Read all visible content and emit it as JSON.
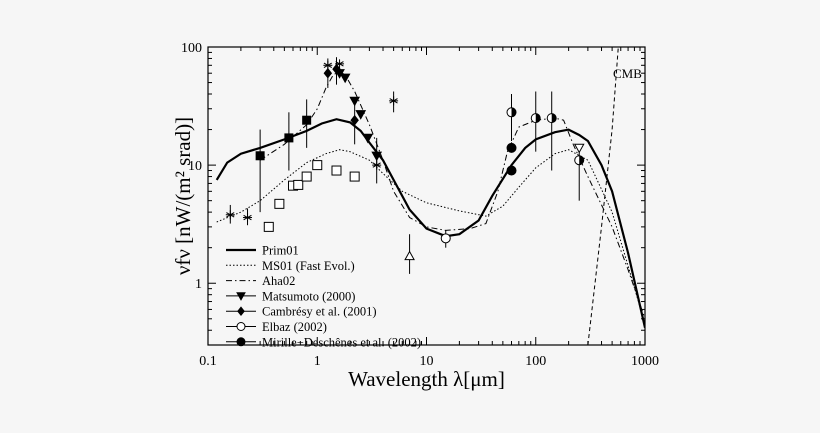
{
  "chart_data": {
    "type": "line",
    "xlabel": "Wavelength λ[μm]",
    "ylabel": "νfν [nW/(m² srad)]",
    "x_scale": "log",
    "y_scale": "log",
    "xlim": [
      0.1,
      1000
    ],
    "ylim": [
      0.3,
      100
    ],
    "x_ticks": [
      "0.1",
      "1",
      "10",
      "100",
      "1000"
    ],
    "y_ticks": [
      "1",
      "10",
      "100"
    ],
    "legend_position": "bottom-left",
    "annotations": [
      {
        "text": "CMB",
        "x": 780,
        "y": 60
      }
    ],
    "series": [
      {
        "name": "Prim01",
        "style": "solid-thick",
        "points": [
          [
            0.12,
            7.5
          ],
          [
            0.15,
            10.5
          ],
          [
            0.2,
            12.5
          ],
          [
            0.3,
            14
          ],
          [
            0.5,
            16.5
          ],
          [
            0.8,
            19.5
          ],
          [
            1.1,
            22.5
          ],
          [
            1.5,
            24.5
          ],
          [
            2,
            23
          ],
          [
            2.5,
            19.5
          ],
          [
            3,
            15.5
          ],
          [
            4,
            11
          ],
          [
            5,
            7.5
          ],
          [
            7,
            4.2
          ],
          [
            10,
            2.9
          ],
          [
            15,
            2.5
          ],
          [
            20,
            2.6
          ],
          [
            30,
            3.4
          ],
          [
            40,
            5.5
          ],
          [
            60,
            10
          ],
          [
            80,
            14
          ],
          [
            100,
            16.5
          ],
          [
            150,
            19
          ],
          [
            200,
            20
          ],
          [
            250,
            18
          ],
          [
            300,
            16
          ],
          [
            400,
            10
          ],
          [
            500,
            6
          ],
          [
            700,
            1.8
          ],
          [
            1000,
            0.42
          ]
        ]
      },
      {
        "name": "MS01 (Fast Evol.)",
        "style": "dotted",
        "points": [
          [
            0.12,
            3.3
          ],
          [
            0.2,
            4
          ],
          [
            0.3,
            5
          ],
          [
            0.5,
            7.5
          ],
          [
            0.8,
            10.5
          ],
          [
            1.2,
            12.5
          ],
          [
            1.6,
            13.5
          ],
          [
            2,
            13
          ],
          [
            3,
            11
          ],
          [
            4,
            8.5
          ],
          [
            6,
            6
          ],
          [
            10,
            4.8
          ],
          [
            20,
            4.1
          ],
          [
            35,
            3.7
          ],
          [
            50,
            4.5
          ],
          [
            70,
            6.5
          ],
          [
            100,
            9.5
          ],
          [
            150,
            12.5
          ],
          [
            200,
            13.5
          ],
          [
            300,
            11
          ],
          [
            500,
            4
          ],
          [
            700,
            1.4
          ],
          [
            1000,
            0.45
          ]
        ]
      },
      {
        "name": "Aha02",
        "style": "dash-dot",
        "points": [
          [
            0.3,
            11
          ],
          [
            0.5,
            15
          ],
          [
            0.8,
            22
          ],
          [
            1,
            30
          ],
          [
            1.2,
            45
          ],
          [
            1.4,
            58
          ],
          [
            1.6,
            62
          ],
          [
            1.8,
            58
          ],
          [
            2.2,
            42
          ],
          [
            3,
            22
          ],
          [
            4,
            11
          ],
          [
            5,
            6
          ],
          [
            7,
            3.6
          ],
          [
            10,
            3
          ],
          [
            15,
            2.8
          ],
          [
            25,
            2.9
          ],
          [
            35,
            3.2
          ],
          [
            45,
            6
          ],
          [
            55,
            13
          ],
          [
            70,
            21
          ],
          [
            100,
            24
          ],
          [
            150,
            25
          ],
          [
            180,
            24
          ],
          [
            220,
            15
          ],
          [
            300,
            8
          ],
          [
            500,
            3
          ],
          [
            700,
            1.3
          ],
          [
            1000,
            0.5
          ]
        ]
      },
      {
        "name": "CMB",
        "style": "dashed",
        "points": [
          [
            300,
            0.3
          ],
          [
            400,
            3
          ],
          [
            500,
            20
          ],
          [
            570,
            100
          ]
        ]
      }
    ],
    "markers": [
      {
        "name": "Matsumoto (2000)",
        "symbol": "triangle-down-filled",
        "points": [
          [
            1.6,
            60
          ],
          [
            1.8,
            55
          ],
          [
            2.2,
            35
          ],
          [
            2.5,
            27
          ],
          [
            2.9,
            17
          ],
          [
            3.5,
            12
          ]
        ]
      },
      {
        "name": "Cambrésy et al. (2001)",
        "symbol": "diamond-filled",
        "points": [
          [
            1.25,
            60
          ],
          [
            1.5,
            65
          ],
          [
            2.2,
            24
          ]
        ]
      },
      {
        "name": "Elbaz (2002)",
        "symbol": "circle-open",
        "points": [
          [
            15,
            2.4
          ]
        ]
      },
      {
        "name": "Mirille−Deschênes et al. (2002)",
        "symbol": "circle-filled",
        "points": [
          [
            60,
            14
          ],
          [
            60,
            9
          ]
        ]
      },
      {
        "name": "",
        "symbol": "square-filled",
        "points": [
          [
            0.3,
            12
          ],
          [
            0.55,
            17
          ],
          [
            0.8,
            24
          ]
        ]
      },
      {
        "name": "",
        "symbol": "square-open",
        "points": [
          [
            0.36,
            3
          ],
          [
            0.45,
            4.7
          ],
          [
            0.6,
            6.7
          ],
          [
            0.67,
            6.8
          ],
          [
            0.8,
            8
          ],
          [
            1.0,
            10
          ],
          [
            1.5,
            9
          ],
          [
            2.2,
            8
          ]
        ]
      },
      {
        "name": "",
        "symbol": "star",
        "points": [
          [
            0.16,
            3.8
          ],
          [
            0.23,
            3.6
          ],
          [
            1.25,
            70
          ],
          [
            1.6,
            72
          ],
          [
            5,
            35
          ],
          [
            3.5,
            10
          ]
        ]
      },
      {
        "name": "",
        "symbol": "triangle-up-open",
        "points": [
          [
            7,
            1.7
          ]
        ]
      },
      {
        "name": "",
        "symbol": "circle-half",
        "points": [
          [
            60,
            28
          ],
          [
            100,
            25
          ],
          [
            140,
            25
          ],
          [
            250,
            11
          ]
        ]
      },
      {
        "name": "",
        "symbol": "triangle-down-open",
        "points": [
          [
            250,
            14
          ]
        ]
      }
    ],
    "error_bars": [
      {
        "x": 0.16,
        "y": 3.8,
        "lo": 3.2,
        "hi": 4.6
      },
      {
        "x": 0.23,
        "y": 3.6,
        "lo": 3.1,
        "hi": 4.3
      },
      {
        "x": 0.3,
        "y": 12,
        "lo": 4,
        "hi": 20
      },
      {
        "x": 0.55,
        "y": 17,
        "lo": 9,
        "hi": 28
      },
      {
        "x": 0.8,
        "y": 24,
        "lo": 14,
        "hi": 36
      },
      {
        "x": 1.25,
        "y": 60,
        "lo": 45,
        "hi": 80
      },
      {
        "x": 1.5,
        "y": 65,
        "lo": 48,
        "hi": 82
      },
      {
        "x": 2.2,
        "y": 24,
        "lo": 15,
        "hi": 35
      },
      {
        "x": 3.5,
        "y": 12,
        "lo": 7,
        "hi": 17
      },
      {
        "x": 5,
        "y": 35,
        "lo": 28,
        "hi": 42
      },
      {
        "x": 7,
        "y": 1.7,
        "lo": 1.2,
        "hi": 2.6
      },
      {
        "x": 15,
        "y": 2.4,
        "lo": 2.0,
        "hi": 2.8
      },
      {
        "x": 60,
        "y": 28,
        "lo": 16,
        "hi": 40
      },
      {
        "x": 100,
        "y": 25,
        "lo": 13,
        "hi": 42
      },
      {
        "x": 140,
        "y": 25,
        "lo": 9,
        "hi": 42
      },
      {
        "x": 250,
        "y": 11,
        "lo": 5,
        "hi": 15
      }
    ],
    "legend": [
      {
        "label": "Prim01",
        "kind": "line",
        "style": "solid-thick"
      },
      {
        "label": "MS01 (Fast Evol.)",
        "kind": "line",
        "style": "dotted"
      },
      {
        "label": "Aha02",
        "kind": "line",
        "style": "dash-dot"
      },
      {
        "label": "Matsumoto (2000)",
        "kind": "marker",
        "symbol": "triangle-down-filled"
      },
      {
        "label": "Cambrésy et al. (2001)",
        "kind": "marker",
        "symbol": "diamond-filled"
      },
      {
        "label": "Elbaz (2002)",
        "kind": "marker",
        "symbol": "circle-open"
      },
      {
        "label": "Mirille−Deschênes et al. (2002)",
        "kind": "marker",
        "symbol": "circle-filled"
      }
    ]
  }
}
